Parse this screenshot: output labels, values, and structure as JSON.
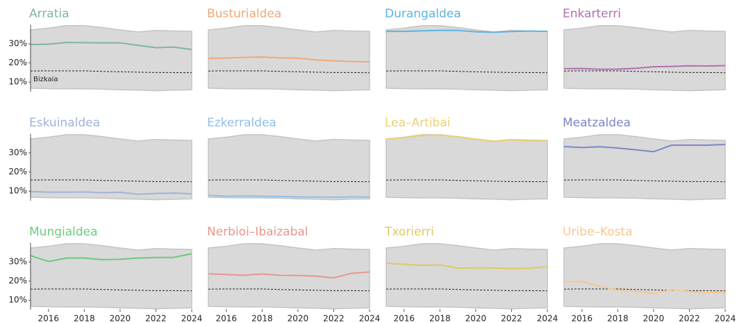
{
  "chart_data": [
    {
      "type": "line",
      "title": "Arratia",
      "annotation": "Bizkaia",
      "color": "#7fb5a1",
      "x": [
        2015,
        2016,
        2017,
        2018,
        2019,
        2020,
        2021,
        2022,
        2023,
        2024
      ],
      "values": [
        29.6,
        29.8,
        30.7,
        30.6,
        30.5,
        30.5,
        29.2,
        28.0,
        28.3,
        27.0
      ],
      "reference": {
        "color": "#222222",
        "values": [
          15.8,
          15.9,
          15.9,
          15.9,
          15.6,
          15.4,
          15.2,
          15.0,
          15.0,
          14.9
        ]
      },
      "band": {
        "color": "#d9d9d9",
        "upper": [
          37.3,
          38.2,
          39.5,
          39.5,
          38.5,
          37.3,
          36.2,
          37.0,
          36.7,
          36.5
        ],
        "lower": [
          6.8,
          6.6,
          6.5,
          6.5,
          6.3,
          6.0,
          5.8,
          5.5,
          5.8,
          6.0
        ]
      },
      "xlim": [
        2015,
        2024
      ],
      "ylim": [
        5,
        40
      ],
      "yticks": [
        {
          "value": 10,
          "label": "10%"
        },
        {
          "value": 20,
          "label": "20%"
        },
        {
          "value": 30,
          "label": "30%"
        }
      ]
    },
    {
      "type": "line",
      "title": "Busturialdea",
      "color": "#f0a878",
      "x": [
        2015,
        2016,
        2017,
        2018,
        2019,
        2020,
        2021,
        2022,
        2023,
        2024
      ],
      "values": [
        22.4,
        22.6,
        22.9,
        23.1,
        22.7,
        22.5,
        21.6,
        21.1,
        20.8,
        20.6
      ],
      "reference": {
        "color": "#222222",
        "values": [
          15.8,
          15.9,
          15.9,
          15.9,
          15.6,
          15.4,
          15.2,
          15.0,
          15.0,
          14.9
        ]
      },
      "band": {
        "color": "#d9d9d9",
        "upper": [
          37.3,
          38.2,
          39.5,
          39.5,
          38.5,
          37.3,
          36.2,
          37.0,
          36.7,
          36.5
        ],
        "lower": [
          6.8,
          6.6,
          6.5,
          6.5,
          6.3,
          6.0,
          5.8,
          5.5,
          5.8,
          6.0
        ]
      },
      "xlim": [
        2015,
        2024
      ],
      "ylim": [
        5,
        40
      ]
    },
    {
      "type": "line",
      "title": "Durangaldea",
      "color": "#5ab4e0",
      "x": [
        2015,
        2016,
        2017,
        2018,
        2019,
        2020,
        2021,
        2022,
        2023,
        2024
      ],
      "values": [
        36.5,
        36.5,
        36.8,
        37.0,
        37.0,
        36.3,
        36.0,
        36.4,
        36.7,
        36.5
      ],
      "reference": {
        "color": "#222222",
        "values": [
          15.8,
          15.9,
          15.9,
          15.9,
          15.6,
          15.4,
          15.2,
          15.0,
          15.0,
          14.9
        ]
      },
      "band": {
        "color": "#d9d9d9",
        "upper": [
          37.3,
          38.2,
          39.5,
          39.5,
          38.5,
          37.3,
          36.2,
          37.0,
          36.7,
          36.5
        ],
        "lower": [
          6.8,
          6.6,
          6.5,
          6.5,
          6.3,
          6.0,
          5.8,
          5.5,
          5.8,
          6.0
        ]
      },
      "xlim": [
        2015,
        2024
      ],
      "ylim": [
        5,
        40
      ]
    },
    {
      "type": "line",
      "title": "Enkarterri",
      "color": "#b06fb0",
      "x": [
        2015,
        2016,
        2017,
        2018,
        2019,
        2020,
        2021,
        2022,
        2023,
        2024
      ],
      "values": [
        17.0,
        17.1,
        16.7,
        16.8,
        17.2,
        18.0,
        18.2,
        18.5,
        18.4,
        18.6
      ],
      "reference": {
        "color": "#222222",
        "values": [
          15.8,
          15.9,
          15.9,
          15.9,
          15.6,
          15.4,
          15.2,
          15.0,
          15.0,
          14.9
        ]
      },
      "band": {
        "color": "#d9d9d9",
        "upper": [
          37.3,
          38.2,
          39.5,
          39.5,
          38.5,
          37.3,
          36.2,
          37.0,
          36.7,
          36.5
        ],
        "lower": [
          6.8,
          6.6,
          6.5,
          6.5,
          6.3,
          6.0,
          5.8,
          5.5,
          5.8,
          6.0
        ]
      },
      "xlim": [
        2015,
        2024
      ],
      "ylim": [
        5,
        40
      ]
    },
    {
      "type": "line",
      "title": "Eskuinaldea",
      "color": "#9fb3da",
      "x": [
        2015,
        2016,
        2017,
        2018,
        2019,
        2020,
        2021,
        2022,
        2023,
        2024
      ],
      "values": [
        9.8,
        9.5,
        9.5,
        9.6,
        9.2,
        9.4,
        8.4,
        8.8,
        9.0,
        8.6
      ],
      "reference": {
        "color": "#222222",
        "values": [
          15.8,
          15.9,
          15.9,
          15.9,
          15.6,
          15.4,
          15.2,
          15.0,
          15.0,
          14.9
        ]
      },
      "band": {
        "color": "#d9d9d9",
        "upper": [
          37.3,
          38.2,
          39.5,
          39.5,
          38.5,
          37.3,
          36.2,
          37.0,
          36.7,
          36.5
        ],
        "lower": [
          6.8,
          6.6,
          6.5,
          6.5,
          6.3,
          6.0,
          5.8,
          5.5,
          5.8,
          6.0
        ]
      },
      "xlim": [
        2015,
        2024
      ],
      "ylim": [
        5,
        40
      ],
      "yticks": [
        {
          "value": 10,
          "label": "10%"
        },
        {
          "value": 20,
          "label": "20%"
        },
        {
          "value": 30,
          "label": "30%"
        }
      ]
    },
    {
      "type": "line",
      "title": "Ezkerraldea",
      "color": "#8ec0ea",
      "x": [
        2015,
        2016,
        2017,
        2018,
        2019,
        2020,
        2021,
        2022,
        2023,
        2024
      ],
      "values": [
        7.8,
        7.4,
        7.5,
        7.4,
        7.2,
        7.0,
        6.9,
        6.8,
        7.0,
        7.0
      ],
      "reference": {
        "color": "#222222",
        "values": [
          15.8,
          15.9,
          15.9,
          15.9,
          15.6,
          15.4,
          15.2,
          15.0,
          15.0,
          14.9
        ]
      },
      "band": {
        "color": "#d9d9d9",
        "upper": [
          37.3,
          38.2,
          39.5,
          39.5,
          38.5,
          37.3,
          36.2,
          37.0,
          36.7,
          36.5
        ],
        "lower": [
          6.8,
          6.6,
          6.5,
          6.5,
          6.3,
          6.0,
          5.8,
          5.5,
          5.8,
          6.0
        ]
      },
      "xlim": [
        2015,
        2024
      ],
      "ylim": [
        5,
        40
      ]
    },
    {
      "type": "line",
      "title": "Lea–Artibai",
      "color": "#ecd170",
      "x": [
        2015,
        2016,
        2017,
        2018,
        2019,
        2020,
        2021,
        2022,
        2023,
        2024
      ],
      "values": [
        37.2,
        37.9,
        39.0,
        39.3,
        38.4,
        37.1,
        36.0,
        36.9,
        36.2,
        36.4
      ],
      "reference": {
        "color": "#222222",
        "values": [
          15.8,
          15.9,
          15.9,
          15.9,
          15.6,
          15.4,
          15.2,
          15.0,
          15.0,
          14.9
        ]
      },
      "band": {
        "color": "#d9d9d9",
        "upper": [
          37.3,
          38.2,
          39.5,
          39.5,
          38.5,
          37.3,
          36.2,
          37.0,
          36.7,
          36.5
        ],
        "lower": [
          6.8,
          6.6,
          6.5,
          6.5,
          6.3,
          6.0,
          5.8,
          5.5,
          5.8,
          6.0
        ]
      },
      "xlim": [
        2015,
        2024
      ],
      "ylim": [
        5,
        40
      ]
    },
    {
      "type": "line",
      "title": "Meatzaldea",
      "color": "#7c86c8",
      "x": [
        2015,
        2016,
        2017,
        2018,
        2019,
        2020,
        2021,
        2022,
        2023,
        2024
      ],
      "values": [
        33.3,
        32.8,
        33.2,
        32.5,
        31.6,
        30.6,
        34.0,
        34.0,
        34.0,
        34.4
      ],
      "reference": {
        "color": "#222222",
        "values": [
          15.8,
          15.9,
          15.9,
          15.9,
          15.6,
          15.4,
          15.2,
          15.0,
          15.0,
          14.9
        ]
      },
      "band": {
        "color": "#d9d9d9",
        "upper": [
          37.3,
          38.2,
          39.5,
          39.5,
          38.5,
          37.3,
          36.2,
          37.0,
          36.7,
          36.5
        ],
        "lower": [
          6.8,
          6.6,
          6.5,
          6.5,
          6.3,
          6.0,
          5.8,
          5.5,
          5.8,
          6.0
        ]
      },
      "xlim": [
        2015,
        2024
      ],
      "ylim": [
        5,
        40
      ]
    },
    {
      "type": "line",
      "title": "Mungialdea",
      "color": "#6cc97e",
      "x": [
        2015,
        2016,
        2017,
        2018,
        2019,
        2020,
        2021,
        2022,
        2023,
        2024
      ],
      "values": [
        33.3,
        30.2,
        32.0,
        32.0,
        31.2,
        31.4,
        32.0,
        32.3,
        32.4,
        34.3
      ],
      "reference": {
        "color": "#222222",
        "values": [
          15.8,
          15.9,
          15.9,
          15.9,
          15.6,
          15.4,
          15.2,
          15.0,
          15.0,
          14.9
        ]
      },
      "band": {
        "color": "#d9d9d9",
        "upper": [
          37.3,
          38.2,
          39.5,
          39.5,
          38.5,
          37.3,
          36.2,
          37.0,
          36.7,
          36.5
        ],
        "lower": [
          6.8,
          6.6,
          6.5,
          6.5,
          6.3,
          6.0,
          5.8,
          5.5,
          5.8,
          6.0
        ]
      },
      "xlim": [
        2015,
        2024
      ],
      "ylim": [
        5,
        40
      ],
      "yticks": [
        {
          "value": 10,
          "label": "10%"
        },
        {
          "value": 20,
          "label": "20%"
        },
        {
          "value": 30,
          "label": "30%"
        }
      ],
      "xticks": [
        2016,
        2018,
        2020,
        2022,
        2024
      ]
    },
    {
      "type": "line",
      "title": "Nerbioi–Ibaizabal",
      "color": "#e8968e",
      "x": [
        2015,
        2016,
        2017,
        2018,
        2019,
        2020,
        2021,
        2022,
        2023,
        2024
      ],
      "values": [
        23.8,
        23.4,
        23.1,
        23.7,
        23.0,
        22.9,
        22.6,
        21.7,
        24.1,
        24.7
      ],
      "reference": {
        "color": "#222222",
        "values": [
          15.8,
          15.9,
          15.9,
          15.9,
          15.6,
          15.4,
          15.2,
          15.0,
          15.0,
          14.9
        ]
      },
      "band": {
        "color": "#d9d9d9",
        "upper": [
          37.3,
          38.2,
          39.5,
          39.5,
          38.5,
          37.3,
          36.2,
          37.0,
          36.7,
          36.5
        ],
        "lower": [
          6.8,
          6.6,
          6.5,
          6.5,
          6.3,
          6.0,
          5.8,
          5.5,
          5.8,
          6.0
        ]
      },
      "xlim": [
        2015,
        2024
      ],
      "ylim": [
        5,
        40
      ],
      "xticks": [
        2016,
        2018,
        2020,
        2022,
        2024
      ]
    },
    {
      "type": "line",
      "title": "Txorierri",
      "color": "#ddca62",
      "x": [
        2015,
        2016,
        2017,
        2018,
        2019,
        2020,
        2021,
        2022,
        2023,
        2024
      ],
      "values": [
        29.3,
        28.8,
        28.2,
        28.4,
        26.7,
        26.9,
        26.8,
        26.6,
        26.7,
        27.5
      ],
      "reference": {
        "color": "#222222",
        "values": [
          15.8,
          15.9,
          15.9,
          15.9,
          15.6,
          15.4,
          15.2,
          15.0,
          15.0,
          14.9
        ]
      },
      "band": {
        "color": "#d9d9d9",
        "upper": [
          37.3,
          38.2,
          39.5,
          39.5,
          38.5,
          37.3,
          36.2,
          37.0,
          36.7,
          36.5
        ],
        "lower": [
          6.8,
          6.6,
          6.5,
          6.5,
          6.3,
          6.0,
          5.8,
          5.5,
          5.8,
          6.0
        ]
      },
      "xlim": [
        2015,
        2024
      ],
      "ylim": [
        5,
        40
      ],
      "xticks": [
        2016,
        2018,
        2020,
        2022,
        2024
      ]
    },
    {
      "type": "line",
      "title": "Uribe–Kosta",
      "color": "#f7c68f",
      "x": [
        2015,
        2016,
        2017,
        2018,
        2019,
        2020,
        2021,
        2022,
        2023,
        2024
      ],
      "values": [
        19.6,
        19.8,
        17.2,
        15.2,
        14.5,
        13.5,
        15.5,
        14.6,
        14.0,
        14.2
      ],
      "reference": {
        "color": "#222222",
        "values": [
          15.8,
          15.9,
          15.9,
          15.9,
          15.6,
          15.4,
          15.2,
          15.0,
          15.0,
          14.9
        ]
      },
      "band": {
        "color": "#d9d9d9",
        "upper": [
          37.3,
          38.2,
          39.5,
          39.5,
          38.5,
          37.3,
          36.2,
          37.0,
          36.7,
          36.5
        ],
        "lower": [
          6.8,
          6.6,
          6.5,
          6.5,
          6.3,
          6.0,
          5.8,
          5.5,
          5.8,
          6.0
        ]
      },
      "xlim": [
        2015,
        2024
      ],
      "ylim": [
        5,
        40
      ],
      "xticks": [
        2016,
        2018,
        2020,
        2022,
        2024
      ]
    }
  ]
}
